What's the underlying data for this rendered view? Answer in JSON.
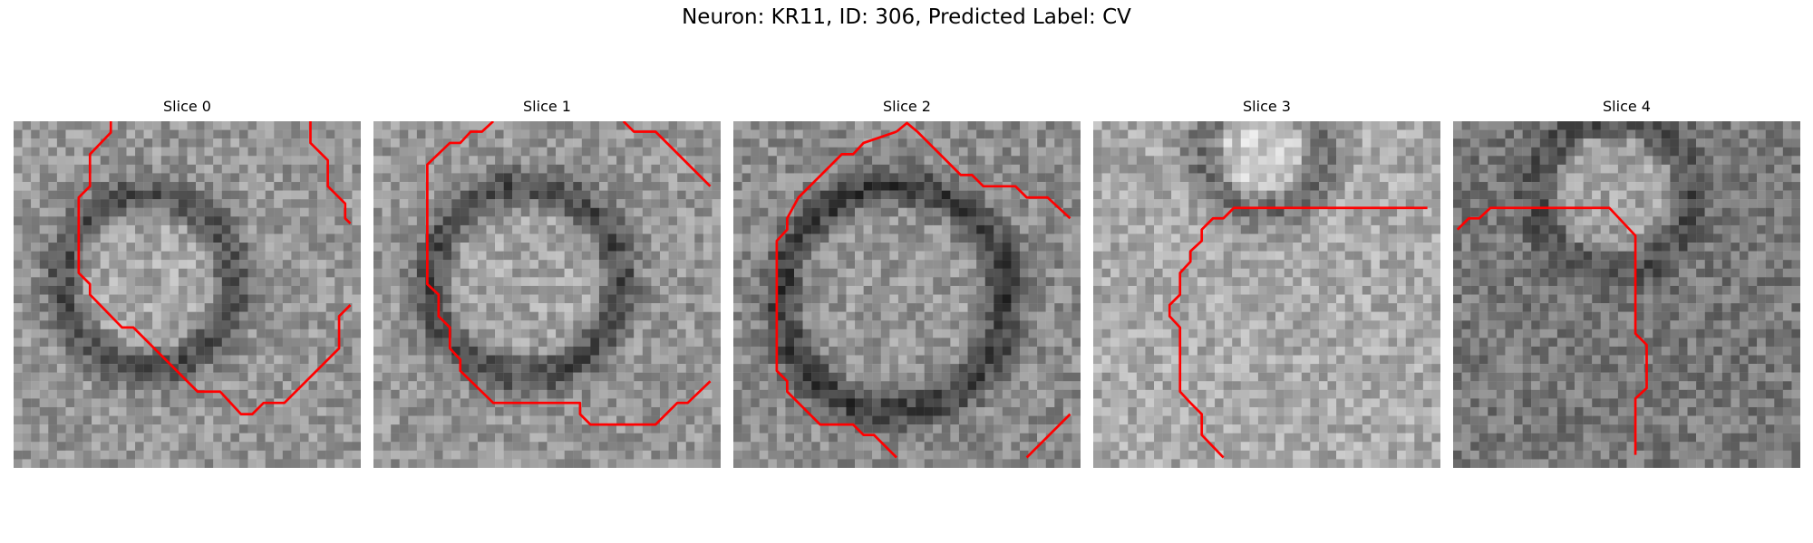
{
  "figure": {
    "title": "Neuron: KR11, ID: 306, Predicted Label: CV"
  },
  "panels": [
    {
      "title": "Slice 0",
      "contour_color": "#ff0000",
      "contours": [
        [
          [
            11.2,
            0
          ],
          [
            11.2,
            1.3
          ],
          [
            8.8,
            3.8
          ],
          [
            8.8,
            7.5
          ],
          [
            7.5,
            8.8
          ],
          [
            7.5,
            17.5
          ],
          [
            8.8,
            18.8
          ],
          [
            8.8,
            20
          ],
          [
            12.5,
            23.8
          ],
          [
            13.8,
            23.8
          ],
          [
            21.2,
            31.2
          ],
          [
            23.8,
            31.2
          ],
          [
            26.2,
            33.8
          ],
          [
            27.5,
            33.8
          ],
          [
            28.8,
            32.5
          ],
          [
            31.2,
            32.5
          ],
          [
            37.5,
            26.2
          ],
          [
            37.5,
            22.5
          ],
          [
            38.8,
            21.2
          ]
        ],
        [
          [
            34.2,
            0
          ],
          [
            34.2,
            2.5
          ],
          [
            36.2,
            4.5
          ],
          [
            36.2,
            7.5
          ],
          [
            38.2,
            9.5
          ],
          [
            38.2,
            11.2
          ],
          [
            38.8,
            11.8
          ]
        ]
      ]
    },
    {
      "title": "Slice 1",
      "contour_color": "#ff0000",
      "contours": [
        [
          [
            13.8,
            0
          ],
          [
            12.5,
            1.2
          ],
          [
            11.2,
            1.2
          ],
          [
            10,
            2.5
          ],
          [
            8.8,
            2.5
          ],
          [
            6.2,
            5
          ],
          [
            6.2,
            8.8
          ],
          [
            6.2,
            18.8
          ],
          [
            7.5,
            20
          ],
          [
            7.5,
            22.5
          ],
          [
            8.8,
            23.8
          ],
          [
            8.8,
            26.2
          ],
          [
            10,
            27.5
          ],
          [
            10,
            28.8
          ],
          [
            13.8,
            32.5
          ],
          [
            23.8,
            32.5
          ],
          [
            23.8,
            33.8
          ],
          [
            25,
            35
          ],
          [
            32.5,
            35
          ],
          [
            35,
            32.5
          ],
          [
            36.2,
            32.5
          ],
          [
            38.8,
            30
          ]
        ],
        [
          [
            28.8,
            0
          ],
          [
            30,
            1.2
          ],
          [
            32.5,
            1.2
          ],
          [
            38.8,
            7.5
          ]
        ]
      ]
    },
    {
      "title": "Slice 2",
      "contour_color": "#ff0000",
      "contours": [
        [
          [
            18.8,
            1.2
          ],
          [
            15,
            2.5
          ],
          [
            13.8,
            3.8
          ],
          [
            12.5,
            3.8
          ],
          [
            7.5,
            8.8
          ],
          [
            6.2,
            11.2
          ],
          [
            6.2,
            12.5
          ],
          [
            5,
            13.8
          ],
          [
            5,
            16.2
          ],
          [
            5,
            28.8
          ],
          [
            6.2,
            30
          ],
          [
            6.2,
            31.2
          ],
          [
            10,
            35
          ],
          [
            13.8,
            35
          ],
          [
            15,
            36.2
          ],
          [
            16.2,
            36.2
          ],
          [
            18.8,
            38.8
          ]
        ],
        [
          [
            18.8,
            1.2
          ],
          [
            20,
            0.2
          ],
          [
            21.2,
            1.2
          ],
          [
            22.5,
            2.5
          ],
          [
            26.2,
            6.2
          ],
          [
            27.5,
            6.2
          ],
          [
            28.8,
            7.5
          ],
          [
            32.5,
            7.5
          ],
          [
            33.8,
            8.8
          ],
          [
            36.2,
            8.8
          ],
          [
            38.8,
            11.2
          ]
        ],
        [
          [
            33.8,
            38.8
          ],
          [
            38.8,
            33.8
          ]
        ]
      ]
    },
    {
      "title": "Slice 3",
      "contour_color": "#ff0000",
      "contours": [
        [
          [
            38.5,
            10
          ],
          [
            16.2,
            10
          ],
          [
            15,
            11.2
          ],
          [
            13.8,
            11.2
          ],
          [
            12.5,
            12.5
          ],
          [
            12.5,
            13.8
          ],
          [
            11.2,
            15
          ],
          [
            11.2,
            16.2
          ],
          [
            10,
            17.5
          ],
          [
            10,
            20
          ],
          [
            8.8,
            21.2
          ],
          [
            8.8,
            22.5
          ],
          [
            10,
            23.8
          ],
          [
            10,
            31.2
          ],
          [
            11.2,
            32.5
          ],
          [
            12.5,
            33.8
          ],
          [
            12.5,
            36.2
          ],
          [
            15,
            38.8
          ]
        ]
      ]
    },
    {
      "title": "Slice 4",
      "contour_color": "#ff0000",
      "contours": [
        [
          [
            0.5,
            12.5
          ],
          [
            1.8,
            11.2
          ],
          [
            3,
            11.2
          ],
          [
            4.3,
            10
          ],
          [
            18,
            10
          ],
          [
            21,
            13.2
          ],
          [
            21,
            24.5
          ],
          [
            22.3,
            25.8
          ],
          [
            22.3,
            30.8
          ],
          [
            21,
            32
          ],
          [
            21,
            38.5
          ]
        ]
      ]
    }
  ]
}
